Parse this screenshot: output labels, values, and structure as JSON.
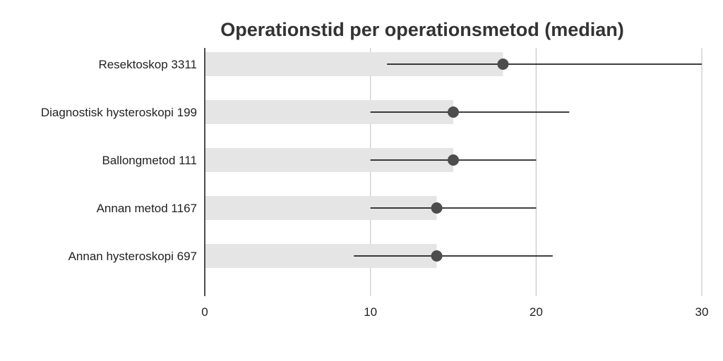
{
  "chart_data": {
    "type": "bar",
    "title": "Operationstid per operationsmetod (median)",
    "xlabel": "",
    "ylabel": "",
    "orientation": "horizontal",
    "categories": [
      "Resektoskop 3311",
      "Diagnostisk hysteroskopi 199",
      "Ballongmetod 111",
      "Annan metod 1167",
      "Annan hysteroskopi 697"
    ],
    "series": [
      {
        "values": [
          18,
          15,
          15,
          14,
          14
        ]
      }
    ],
    "error_low": [
      11,
      10,
      10,
      10,
      9
    ],
    "error_high": [
      30,
      22,
      20,
      20,
      21
    ],
    "xlim": [
      0,
      30
    ],
    "xticks": [
      0,
      10,
      20,
      30
    ],
    "grid": true,
    "colors": {
      "bar": "#e5e5e5",
      "marker": "#4d4d4d",
      "errorbar": "#000000",
      "grid": "#c8c8c8",
      "axis": "#222222",
      "title": "#333333"
    }
  }
}
